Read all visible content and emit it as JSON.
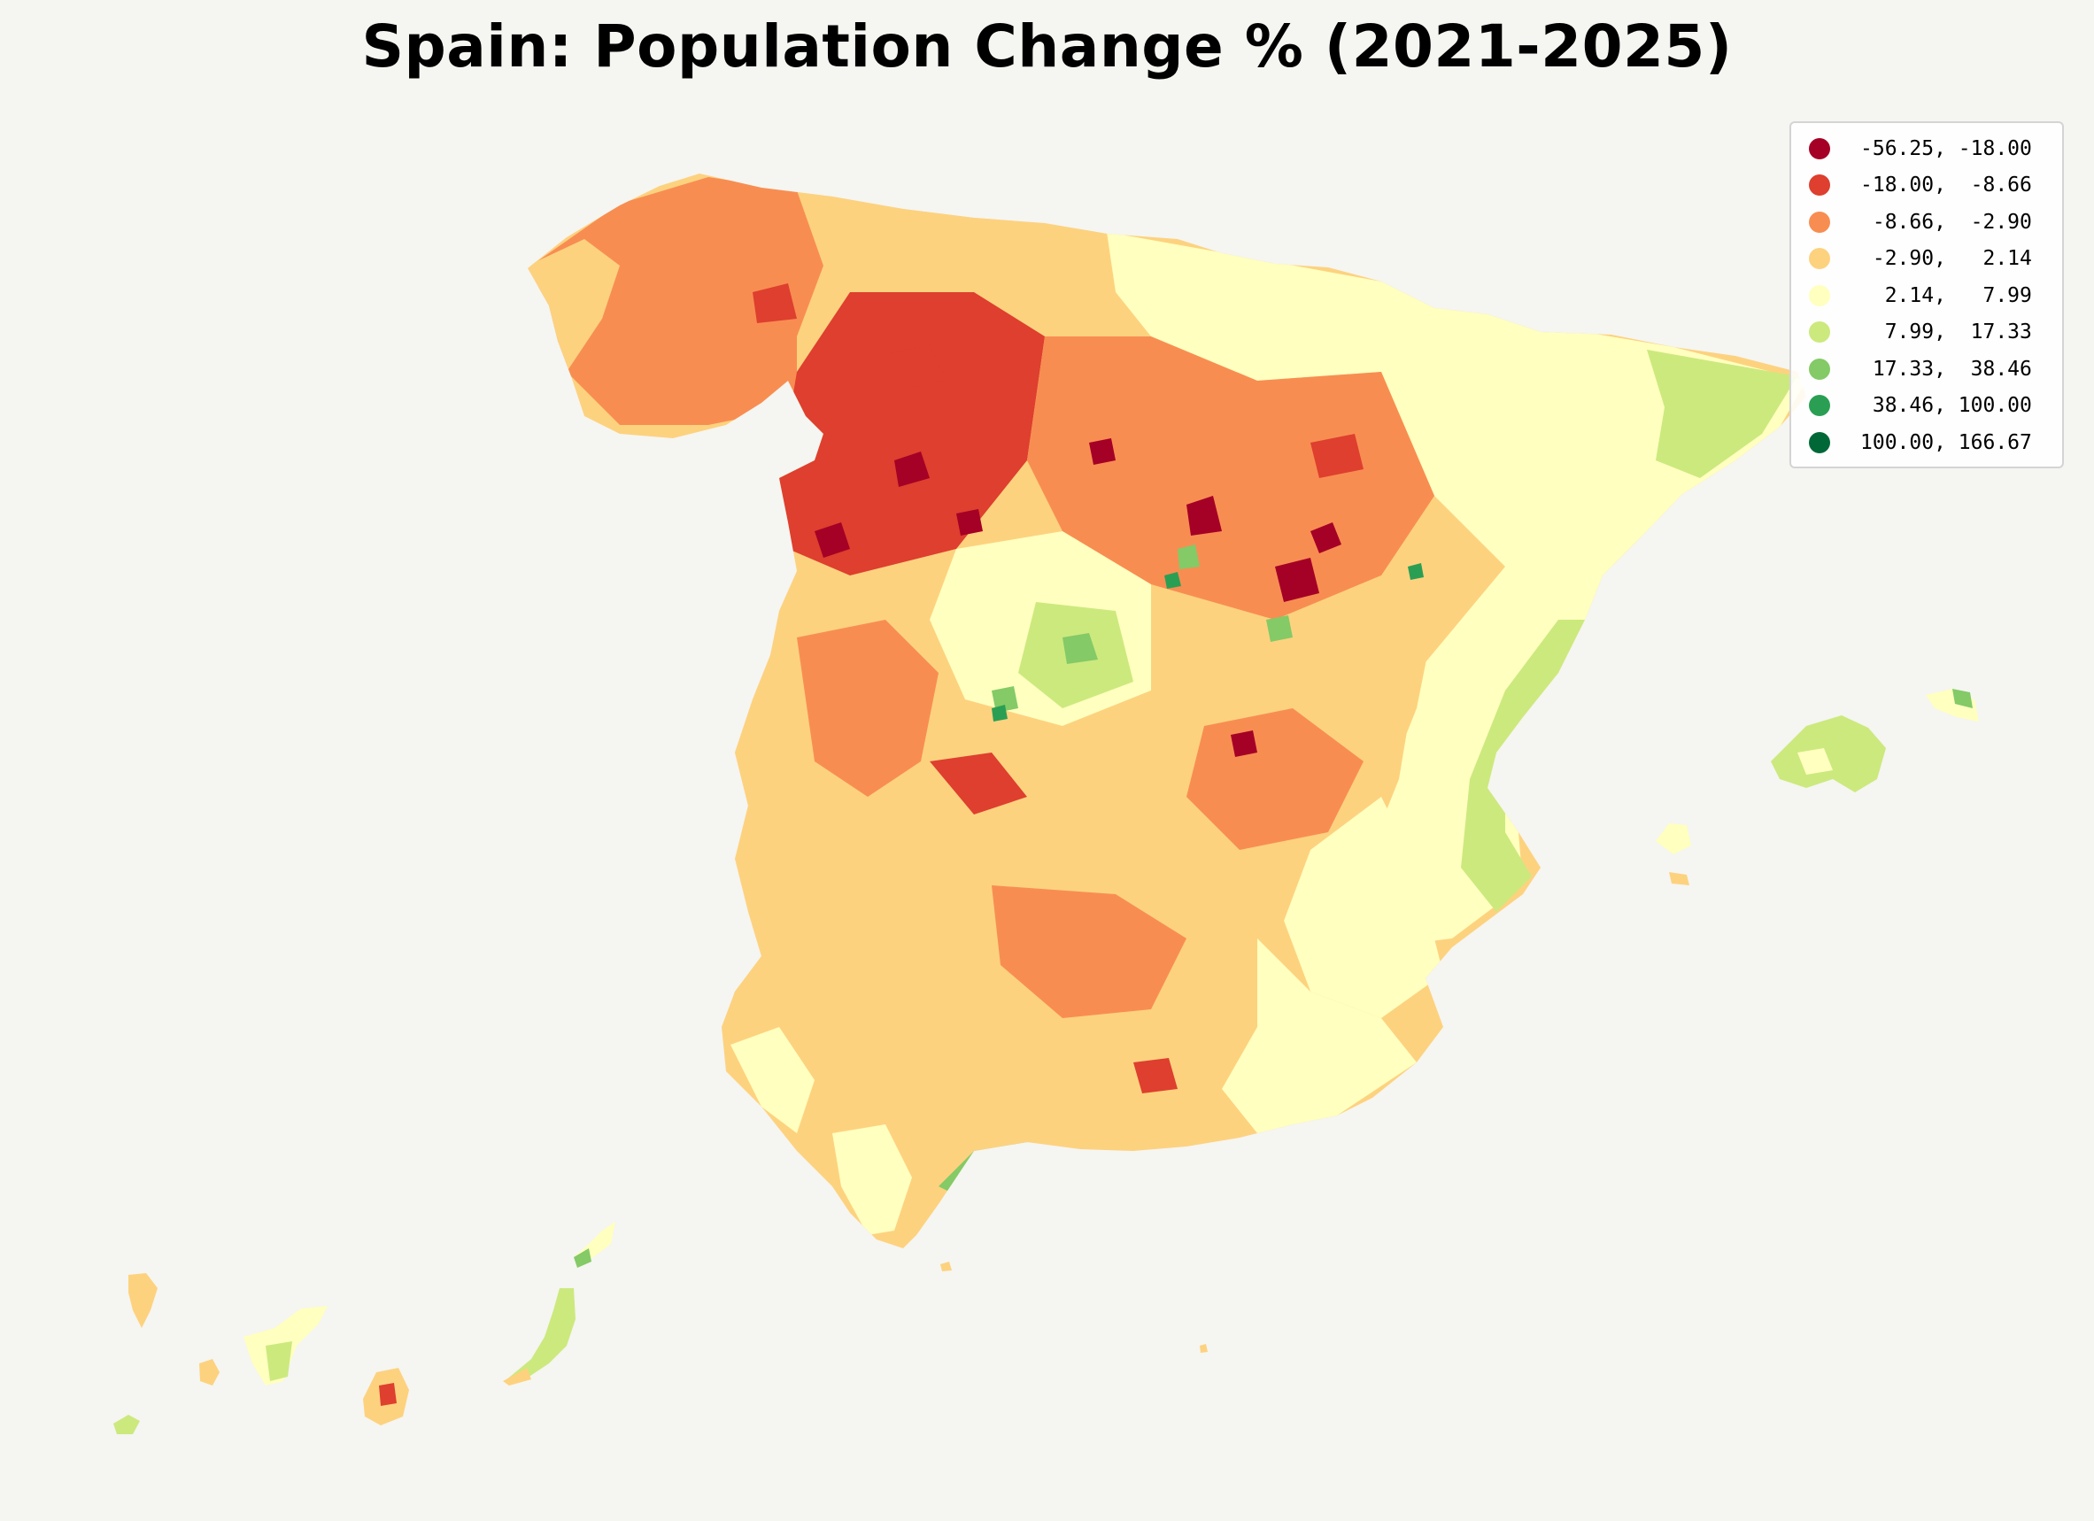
{
  "title": "Spain: Population Change % (2021-2025)",
  "background_color": "#f5f5f1",
  "legend": {
    "placement": "top-right",
    "items": [
      {
        "label": "-56.25, -18.00",
        "color": "#a50026"
      },
      {
        "label": "-18.00,  -8.66",
        "color": "#de3f2e"
      },
      {
        "label": " -8.66,  -2.90",
        "color": "#f88d52"
      },
      {
        "label": " -2.90,   2.14",
        "color": "#fdd27f"
      },
      {
        "label": "  2.14,   7.99",
        "color": "#ffffbf"
      },
      {
        "label": "  7.99,  17.33",
        "color": "#cce97e"
      },
      {
        "label": " 17.33,  38.46",
        "color": "#84ca66"
      },
      {
        "label": " 38.46, 100.00",
        "color": "#2a9f54"
      },
      {
        "label": "100.00, 166.67",
        "color": "#006837"
      }
    ]
  }
}
